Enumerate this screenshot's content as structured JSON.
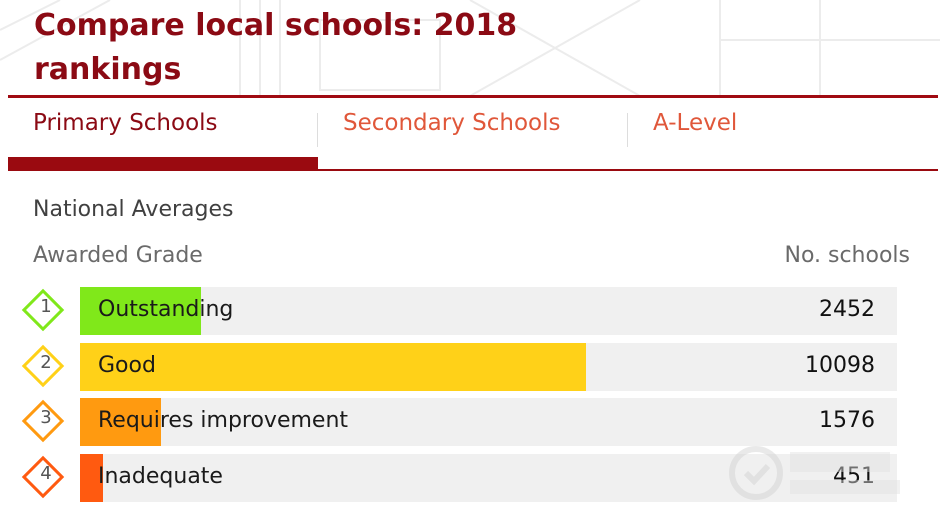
{
  "header": {
    "title": "Compare local schools: 2018 rankings"
  },
  "tabs": [
    {
      "label": "Primary Schools",
      "active": true
    },
    {
      "label": "Secondary Schools",
      "active": false
    },
    {
      "label": "A-Level",
      "active": false
    }
  ],
  "section": {
    "title": "National Averages",
    "col_grade": "Awarded Grade",
    "col_count": "No. schools"
  },
  "grades": [
    {
      "rank": "1",
      "label": "Outstanding",
      "count": "2452",
      "fraction": 0.24,
      "color": "#80e81a"
    },
    {
      "rank": "2",
      "label": "Good",
      "count": "10098",
      "fraction": 1.0,
      "color": "#ffd118"
    },
    {
      "rank": "3",
      "label": "Requires improvement",
      "count": "1576",
      "fraction": 0.16,
      "color": "#ff9a10"
    },
    {
      "rank": "4",
      "label": "Inadequate",
      "count": "451",
      "fraction": 0.045,
      "color": "#ff5a10"
    }
  ],
  "colors": {
    "brand": "#8b0a14",
    "tab_inactive": "#e0573a",
    "track": "#f0f0f0"
  }
}
